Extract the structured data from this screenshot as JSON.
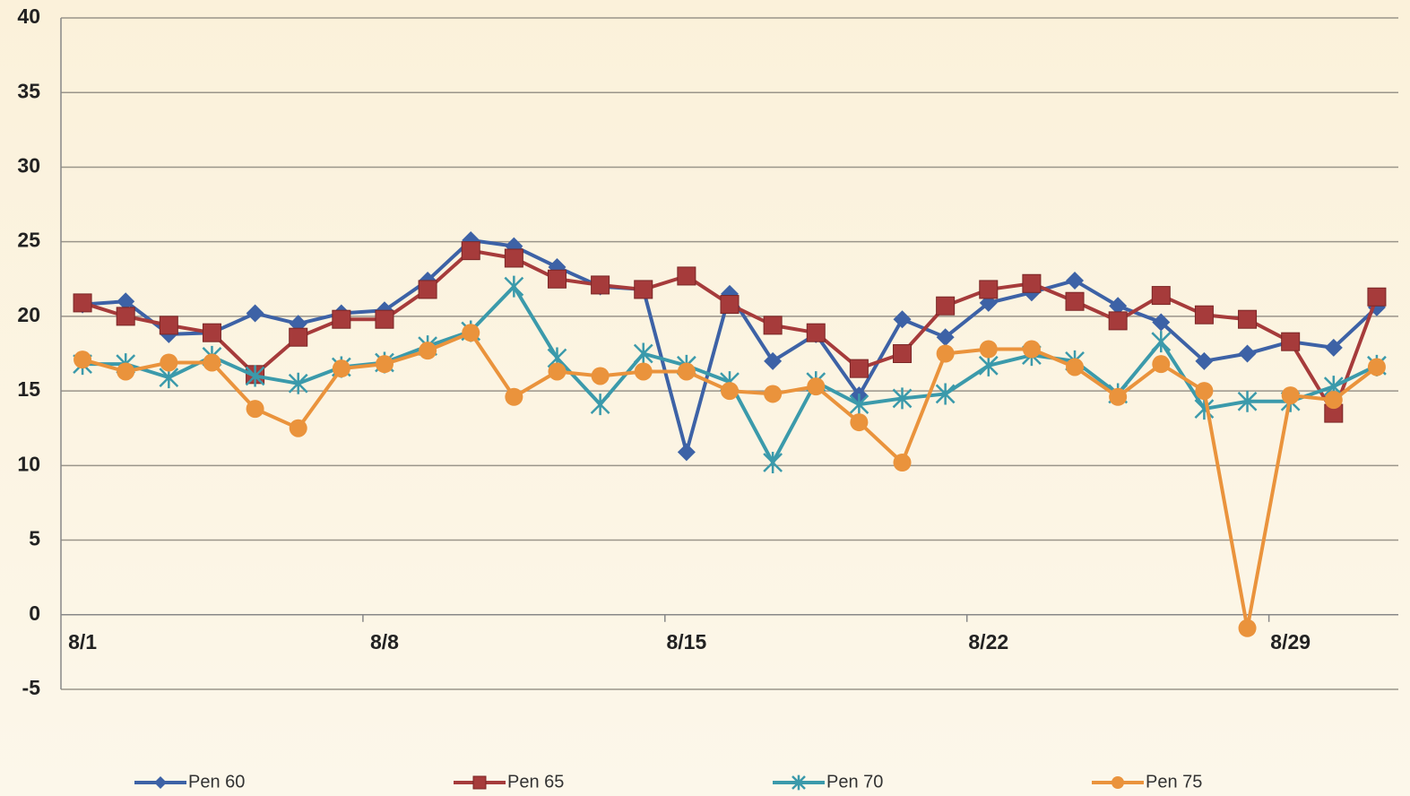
{
  "chart_data": {
    "type": "line",
    "categories": [
      "8/1",
      null,
      null,
      null,
      null,
      null,
      null,
      "8/8",
      null,
      null,
      null,
      null,
      null,
      null,
      "8/15",
      null,
      null,
      null,
      null,
      null,
      null,
      "8/22",
      null,
      null,
      null,
      null,
      null,
      null,
      "8/29",
      null,
      null
    ],
    "series": [
      {
        "name": "Pen 60",
        "color": "#3d62a6",
        "marker": "diamond",
        "values": [
          20.8,
          21.0,
          18.8,
          18.9,
          20.2,
          19.5,
          20.2,
          20.4,
          22.4,
          25.1,
          24.7,
          23.3,
          22.0,
          21.8,
          10.9,
          21.5,
          17.0,
          18.8,
          14.7,
          19.8,
          18.6,
          20.9,
          21.6,
          22.4,
          20.7,
          19.6,
          17.0,
          17.5,
          18.3,
          17.9,
          20.6
        ]
      },
      {
        "name": "Pen 65",
        "color": "#a63b3b",
        "marker": "square",
        "values": [
          20.9,
          20.0,
          19.4,
          18.9,
          16.1,
          18.6,
          19.8,
          19.8,
          21.8,
          24.4,
          23.9,
          22.5,
          22.1,
          21.8,
          22.7,
          20.8,
          19.4,
          18.9,
          16.5,
          17.5,
          20.7,
          21.8,
          22.2,
          21.0,
          19.7,
          21.4,
          20.1,
          19.8,
          18.3,
          13.5,
          21.3
        ]
      },
      {
        "name": "Pen 70",
        "color": "#3b9aab",
        "marker": "asterisk",
        "values": [
          16.8,
          16.8,
          15.9,
          17.3,
          16.0,
          15.5,
          16.6,
          16.9,
          18.0,
          19.0,
          22.0,
          17.2,
          14.1,
          17.5,
          16.7,
          15.6,
          10.2,
          15.6,
          14.1,
          14.5,
          14.8,
          16.7,
          17.4,
          17.0,
          14.8,
          18.3,
          13.8,
          14.3,
          14.3,
          15.3,
          16.7
        ]
      },
      {
        "name": "Pen 75",
        "color": "#ea933c",
        "marker": "circle",
        "values": [
          17.1,
          16.3,
          16.9,
          16.9,
          13.8,
          12.5,
          16.5,
          16.8,
          17.7,
          18.9,
          14.6,
          16.3,
          16.0,
          16.3,
          16.3,
          15.0,
          14.8,
          15.3,
          12.9,
          10.2,
          17.5,
          17.8,
          17.8,
          16.6,
          14.6,
          16.8,
          15.0,
          -0.9,
          14.7,
          14.4,
          16.6
        ]
      }
    ],
    "ylim": [
      -5,
      40
    ],
    "yticks": [
      -5,
      0,
      5,
      10,
      15,
      20,
      25,
      30,
      35,
      40
    ],
    "grid": true,
    "legend": "bottom"
  }
}
